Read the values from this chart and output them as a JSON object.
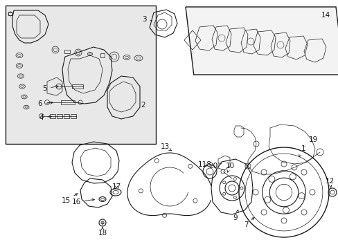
{
  "background_color": "#ffffff",
  "fig_width": 4.89,
  "fig_height": 3.6,
  "dpi": 100,
  "label_fs": 7.5,
  "lw_thin": 0.5,
  "lw_med": 0.8,
  "lw_thick": 1.0,
  "gray_fill": "#e8e8e8",
  "dark": "#1a1a1a",
  "mid": "#444444",
  "light": "#888888"
}
